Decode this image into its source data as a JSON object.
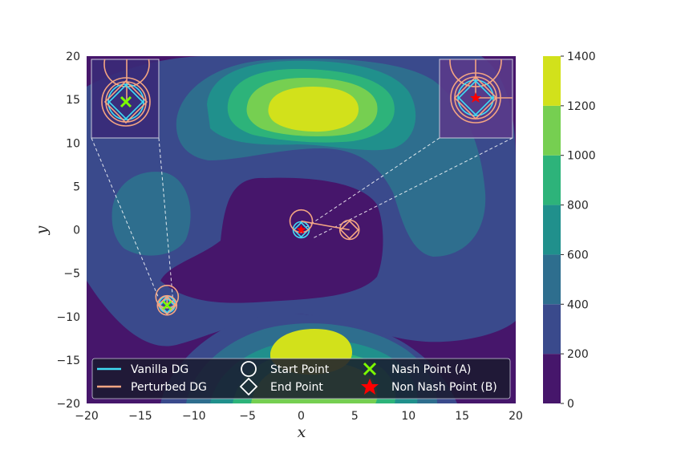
{
  "chart_data": {
    "type": "contour",
    "xlabel": "x",
    "ylabel": "y",
    "xlim": [
      -20,
      20
    ],
    "ylim": [
      -20,
      20
    ],
    "x_ticks": [
      "−20",
      "−15",
      "−10",
      "−5",
      "0",
      "5",
      "10",
      "15",
      "20"
    ],
    "y_ticks": [
      "−20",
      "−15",
      "−10",
      "−5",
      "0",
      "5",
      "10",
      "15",
      "20"
    ],
    "colorbar": {
      "levels": [
        0,
        200,
        400,
        600,
        800,
        1000,
        1200,
        1400
      ],
      "tick_labels": [
        "0",
        "200",
        "400",
        "600",
        "800",
        "1000",
        "1200",
        "1400"
      ],
      "colors": [
        "#46166b",
        "#3a4a8c",
        "#2e6e8e",
        "#20908c",
        "#2db37a",
        "#76cf51",
        "#d2e11b"
      ]
    },
    "legend": {
      "placement": "lower-center",
      "entries": [
        {
          "label": "Vanilla DG",
          "marker": "line",
          "color": "#3fdcf4"
        },
        {
          "label": "Perturbed DG",
          "marker": "line",
          "color": "#f4a582"
        },
        {
          "label": "Start Point",
          "marker": "circle",
          "color": "#ffffff"
        },
        {
          "label": "End Point",
          "marker": "diamond",
          "color": "#ffffff"
        },
        {
          "label": "Nash Point (A)",
          "marker": "x",
          "color": "#7cfc00"
        },
        {
          "label": "Non Nash Point (B)",
          "marker": "star",
          "color": "#ff0000"
        }
      ]
    },
    "points": {
      "nash_A": [
        -12.5,
        -8.7
      ],
      "non_nash_B": [
        0,
        0
      ]
    },
    "trajectories": [
      {
        "series": "Vanilla DG",
        "start": [
          -12.5,
          -8.6
        ],
        "end": [
          -12.5,
          -8.7
        ]
      },
      {
        "series": "Perturbed DG",
        "start": [
          -12.5,
          -7.7
        ],
        "end": [
          -12.5,
          -8.7
        ]
      },
      {
        "series": "Vanilla DG",
        "start": [
          0,
          0
        ],
        "end": [
          0,
          0
        ]
      },
      {
        "series": "Perturbed DG",
        "start": [
          0,
          1
        ],
        "end": [
          4.5,
          0
        ]
      }
    ]
  }
}
